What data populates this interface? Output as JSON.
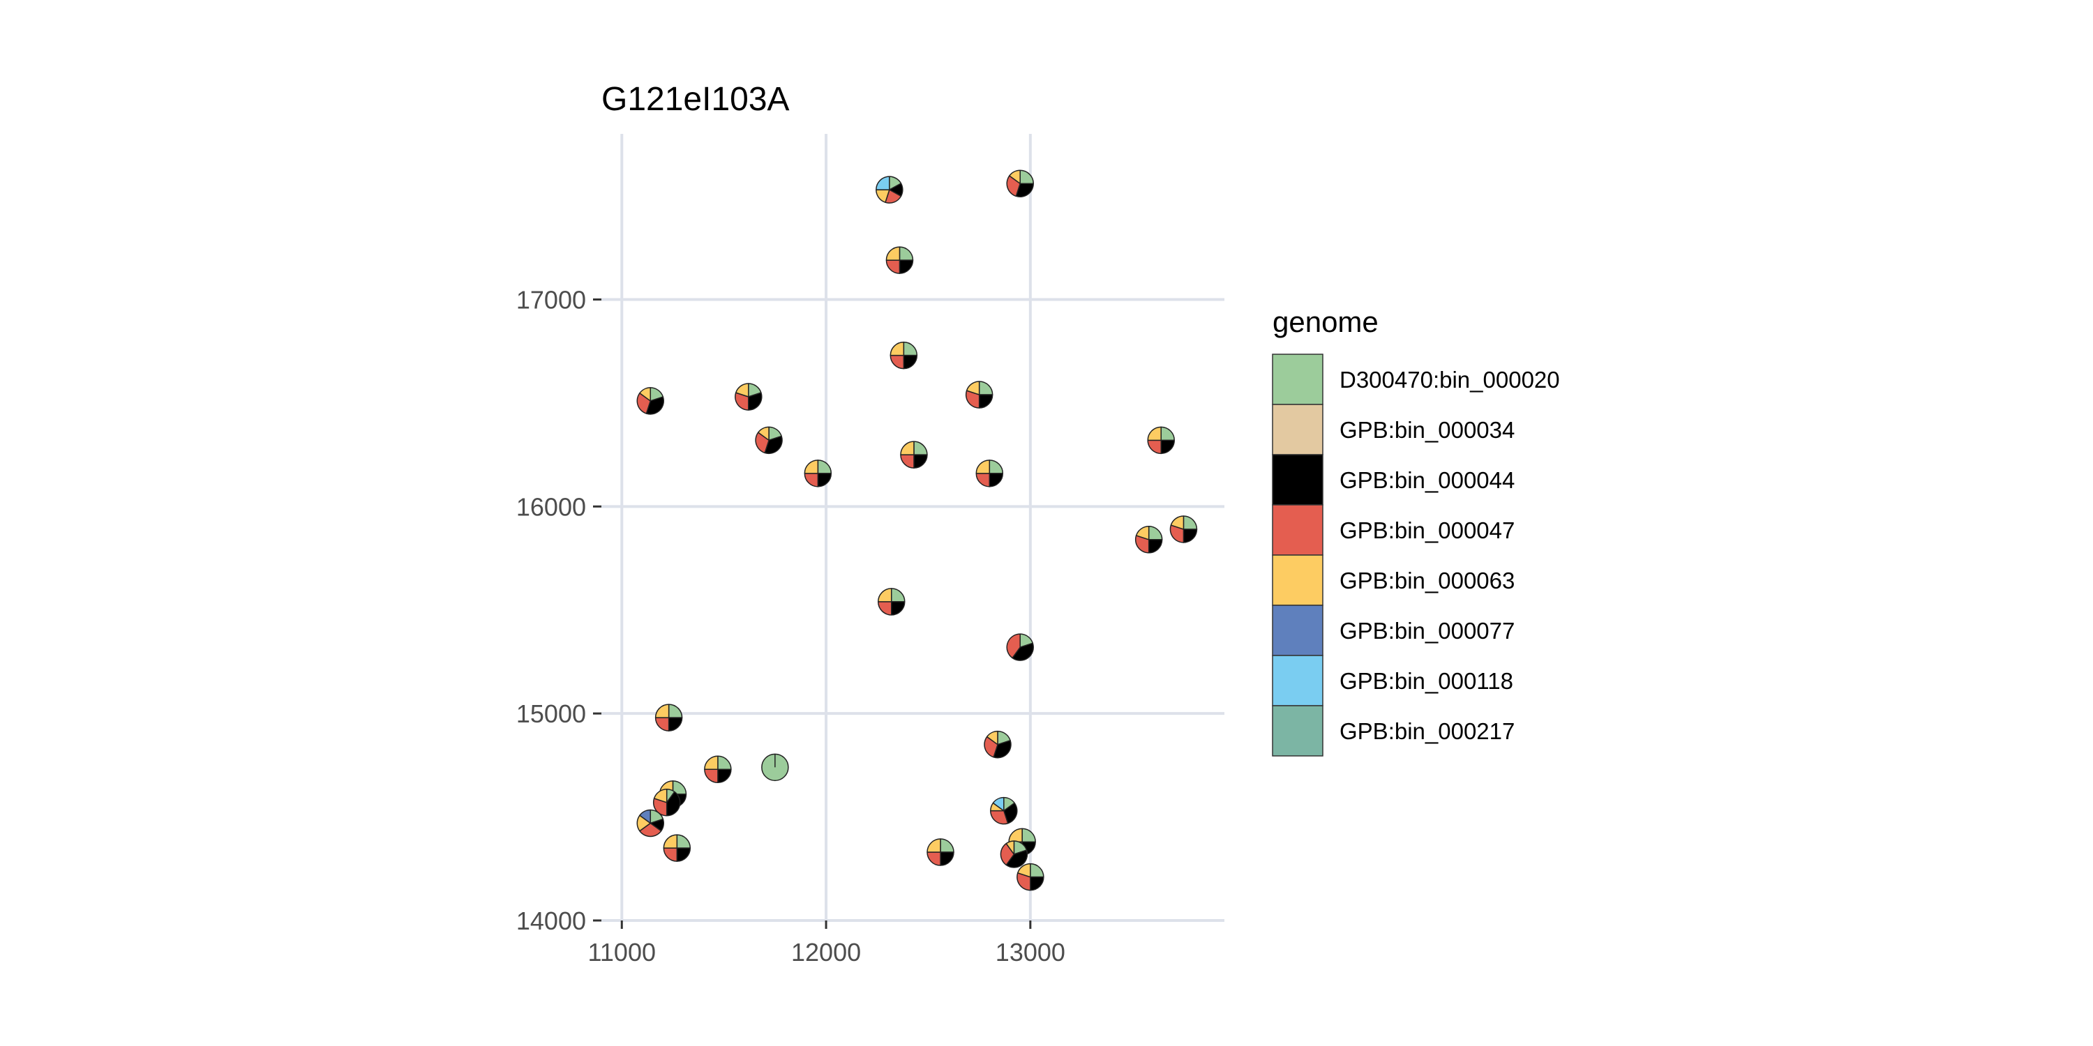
{
  "chart_data": {
    "type": "scatter",
    "marker": "pie",
    "title": "G121eI103A",
    "xlabel": "",
    "ylabel": "",
    "xlim": [
      10900,
      13950
    ],
    "ylim": [
      14000,
      17800
    ],
    "xticks": [
      11000,
      12000,
      13000
    ],
    "yticks": [
      14000,
      15000,
      16000,
      17000
    ],
    "grid": true,
    "legend": {
      "title": "genome",
      "position": "right",
      "entries": [
        {
          "name": "D300470:bin_000020",
          "color": "#9ccc9b"
        },
        {
          "name": "GPB:bin_000034",
          "color": "#e3c9a1"
        },
        {
          "name": "GPB:bin_000044",
          "color": "#000000"
        },
        {
          "name": "GPB:bin_000047",
          "color": "#e45e50"
        },
        {
          "name": "GPB:bin_000063",
          "color": "#fdcc62"
        },
        {
          "name": "GPB:bin_000077",
          "color": "#5f80bd"
        },
        {
          "name": "GPB:bin_000118",
          "color": "#7acdf1"
        },
        {
          "name": "GPB:bin_000217",
          "color": "#7cb5a4"
        }
      ]
    },
    "points": [
      {
        "x": 12310,
        "y": 17530,
        "slices": {
          "D300470:bin_000020": 0.17,
          "GPB:bin_000044": 0.16,
          "GPB:bin_000047": 0.22,
          "GPB:bin_000063": 0.2,
          "GPB:bin_000118": 0.25
        }
      },
      {
        "x": 12950,
        "y": 17560,
        "slices": {
          "D300470:bin_000020": 0.25,
          "GPB:bin_000044": 0.3,
          "GPB:bin_000047": 0.3,
          "GPB:bin_000063": 0.15
        }
      },
      {
        "x": 12360,
        "y": 17190,
        "slices": {
          "D300470:bin_000020": 0.25,
          "GPB:bin_000044": 0.25,
          "GPB:bin_000047": 0.25,
          "GPB:bin_000063": 0.25
        }
      },
      {
        "x": 12380,
        "y": 16730,
        "slices": {
          "D300470:bin_000020": 0.25,
          "GPB:bin_000044": 0.25,
          "GPB:bin_000047": 0.25,
          "GPB:bin_000063": 0.25
        }
      },
      {
        "x": 11140,
        "y": 16510,
        "slices": {
          "D300470:bin_000020": 0.2,
          "GPB:bin_000044": 0.35,
          "GPB:bin_000047": 0.3,
          "GPB:bin_000063": 0.15
        }
      },
      {
        "x": 11620,
        "y": 16530,
        "slices": {
          "D300470:bin_000020": 0.2,
          "GPB:bin_000044": 0.3,
          "GPB:bin_000047": 0.3,
          "GPB:bin_000063": 0.2
        }
      },
      {
        "x": 12750,
        "y": 16540,
        "slices": {
          "D300470:bin_000020": 0.25,
          "GPB:bin_000044": 0.25,
          "GPB:bin_000047": 0.3,
          "GPB:bin_000063": 0.2
        }
      },
      {
        "x": 11720,
        "y": 16320,
        "slices": {
          "D300470:bin_000020": 0.2,
          "GPB:bin_000044": 0.35,
          "GPB:bin_000047": 0.3,
          "GPB:bin_000063": 0.15
        }
      },
      {
        "x": 13640,
        "y": 16320,
        "slices": {
          "D300470:bin_000020": 0.25,
          "GPB:bin_000044": 0.25,
          "GPB:bin_000047": 0.25,
          "GPB:bin_000063": 0.25
        }
      },
      {
        "x": 12430,
        "y": 16250,
        "slices": {
          "D300470:bin_000020": 0.25,
          "GPB:bin_000044": 0.25,
          "GPB:bin_000047": 0.25,
          "GPB:bin_000063": 0.25
        }
      },
      {
        "x": 11960,
        "y": 16160,
        "slices": {
          "D300470:bin_000020": 0.25,
          "GPB:bin_000044": 0.25,
          "GPB:bin_000047": 0.25,
          "GPB:bin_000063": 0.25
        }
      },
      {
        "x": 12800,
        "y": 16160,
        "slices": {
          "D300470:bin_000020": 0.25,
          "GPB:bin_000044": 0.25,
          "GPB:bin_000047": 0.25,
          "GPB:bin_000063": 0.25
        }
      },
      {
        "x": 13750,
        "y": 15890,
        "slices": {
          "D300470:bin_000020": 0.25,
          "GPB:bin_000044": 0.25,
          "GPB:bin_000047": 0.3,
          "GPB:bin_000063": 0.2
        }
      },
      {
        "x": 13580,
        "y": 15840,
        "slices": {
          "D300470:bin_000020": 0.25,
          "GPB:bin_000044": 0.25,
          "GPB:bin_000047": 0.3,
          "GPB:bin_000063": 0.2
        }
      },
      {
        "x": 12320,
        "y": 15540,
        "slices": {
          "D300470:bin_000020": 0.25,
          "GPB:bin_000044": 0.25,
          "GPB:bin_000047": 0.25,
          "GPB:bin_000063": 0.25
        }
      },
      {
        "x": 12950,
        "y": 15320,
        "slices": {
          "D300470:bin_000020": 0.2,
          "GPB:bin_000044": 0.4,
          "GPB:bin_000047": 0.4
        }
      },
      {
        "x": 11230,
        "y": 14980,
        "slices": {
          "D300470:bin_000020": 0.25,
          "GPB:bin_000044": 0.25,
          "GPB:bin_000047": 0.25,
          "GPB:bin_000063": 0.25
        }
      },
      {
        "x": 12840,
        "y": 14850,
        "slices": {
          "D300470:bin_000020": 0.2,
          "GPB:bin_000044": 0.35,
          "GPB:bin_000047": 0.3,
          "GPB:bin_000063": 0.15
        }
      },
      {
        "x": 11750,
        "y": 14740,
        "slices": {
          "D300470:bin_000020": 1.0
        }
      },
      {
        "x": 11470,
        "y": 14730,
        "slices": {
          "D300470:bin_000020": 0.25,
          "GPB:bin_000044": 0.25,
          "GPB:bin_000047": 0.25,
          "GPB:bin_000063": 0.25
        }
      },
      {
        "x": 11250,
        "y": 14610,
        "slices": {
          "D300470:bin_000020": 0.25,
          "GPB:bin_000044": 0.25,
          "GPB:bin_000047": 0.25,
          "GPB:bin_000063": 0.25
        }
      },
      {
        "x": 11220,
        "y": 14570,
        "slices": {
          "D300470:bin_000020": 0.1,
          "GPB:bin_000044": 0.4,
          "GPB:bin_000047": 0.3,
          "GPB:bin_000063": 0.2
        }
      },
      {
        "x": 12870,
        "y": 14530,
        "slices": {
          "D300470:bin_000020": 0.15,
          "GPB:bin_000044": 0.3,
          "GPB:bin_000047": 0.3,
          "GPB:bin_000063": 0.1,
          "GPB:bin_000118": 0.15
        }
      },
      {
        "x": 11140,
        "y": 14470,
        "slices": {
          "D300470:bin_000020": 0.2,
          "GPB:bin_000044": 0.15,
          "GPB:bin_000047": 0.3,
          "GPB:bin_000063": 0.2,
          "GPB:bin_000077": 0.15
        }
      },
      {
        "x": 12960,
        "y": 14380,
        "slices": {
          "D300470:bin_000020": 0.25,
          "GPB:bin_000044": 0.25,
          "GPB:bin_000047": 0.25,
          "GPB:bin_000063": 0.25
        }
      },
      {
        "x": 11270,
        "y": 14350,
        "slices": {
          "D300470:bin_000020": 0.25,
          "GPB:bin_000044": 0.25,
          "GPB:bin_000047": 0.25,
          "GPB:bin_000063": 0.25
        }
      },
      {
        "x": 12560,
        "y": 14330,
        "slices": {
          "D300470:bin_000020": 0.25,
          "GPB:bin_000044": 0.25,
          "GPB:bin_000047": 0.25,
          "GPB:bin_000063": 0.25
        }
      },
      {
        "x": 12920,
        "y": 14320,
        "slices": {
          "D300470:bin_000020": 0.2,
          "GPB:bin_000044": 0.4,
          "GPB:bin_000047": 0.3,
          "GPB:bin_000063": 0.1
        }
      },
      {
        "x": 13000,
        "y": 14210,
        "slices": {
          "D300470:bin_000020": 0.25,
          "GPB:bin_000044": 0.25,
          "GPB:bin_000047": 0.3,
          "GPB:bin_000063": 0.2
        }
      }
    ]
  }
}
